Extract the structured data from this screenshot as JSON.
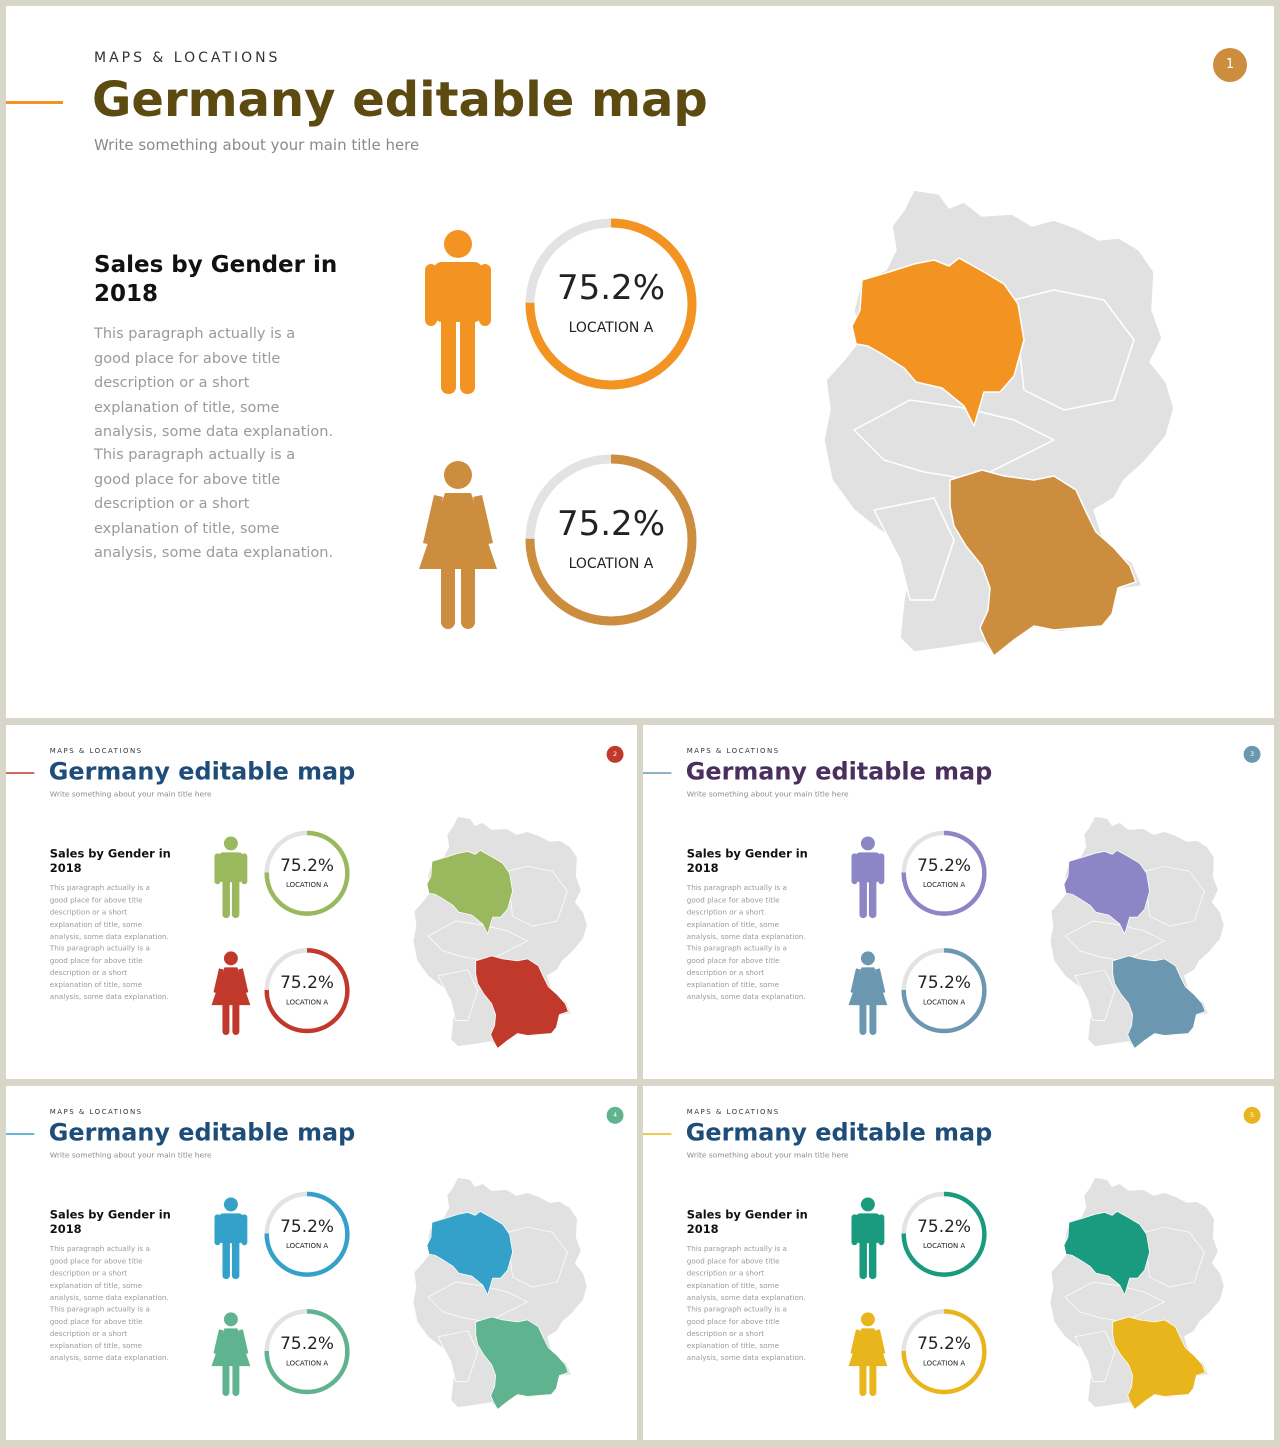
{
  "slides": [
    {
      "number": "1",
      "kicker": "MAPS & LOCATIONS",
      "title": "Germany editable map",
      "subtitle": "Write something about your main title here",
      "section_heading": "Sales by Gender in 2018",
      "paragraph_1": "This paragraph actually is a good place for above title description or a short explanation of title, some analysis, some data explanation.",
      "paragraph_2": "This paragraph actually is a good place for above title description or a short explanation of title, some analysis, some data explanation.",
      "male": {
        "value": "75.2%",
        "label": "LOCATION A",
        "fraction": 0.752
      },
      "female": {
        "value": "75.2%",
        "label": "LOCATION A",
        "fraction": 0.752
      },
      "colors": {
        "title": "#5c4a10",
        "male": "#f39422",
        "female": "#cc8d3f",
        "badge": "#cc8d3f",
        "accent": "#f39422"
      }
    },
    {
      "number": "2",
      "kicker": "MAPS & LOCATIONS",
      "title": "Germany editable map",
      "subtitle": "Write something about your main title here",
      "section_heading": "Sales by Gender in 2018",
      "paragraph_1": "This paragraph actually is a good place for above title description or a short explanation of title, some analysis, some data explanation.",
      "paragraph_2": "This paragraph actually is a good place for above title description or a short explanation of title, some analysis, some data explanation.",
      "male": {
        "value": "75.2%",
        "label": "LOCATION A",
        "fraction": 0.752
      },
      "female": {
        "value": "75.2%",
        "label": "LOCATION A",
        "fraction": 0.752
      },
      "colors": {
        "title": "#1f4d7a",
        "male": "#9ab85e",
        "female": "#c0392b",
        "badge": "#c0392b",
        "accent": "#c0392b"
      }
    },
    {
      "number": "3",
      "kicker": "MAPS & LOCATIONS",
      "title": "Germany editable map",
      "subtitle": "Write something about your main title here",
      "section_heading": "Sales by Gender in 2018",
      "paragraph_1": "This paragraph actually is a good place for above title description or a short explanation of title, some analysis, some data explanation.",
      "paragraph_2": "This paragraph actually is a good place for above title description or a short explanation of title, some analysis, some data explanation.",
      "male": {
        "value": "75.2%",
        "label": "LOCATION A",
        "fraction": 0.752
      },
      "female": {
        "value": "75.2%",
        "label": "LOCATION A",
        "fraction": 0.752
      },
      "colors": {
        "title": "#4a2e5e",
        "male": "#8c85c6",
        "female": "#6b98b0",
        "badge": "#6b98b0",
        "accent": "#6b98b0"
      }
    },
    {
      "number": "4",
      "kicker": "MAPS & LOCATIONS",
      "title": "Germany editable map",
      "subtitle": "Write something about your main title here",
      "section_heading": "Sales by Gender in 2018",
      "paragraph_1": "This paragraph actually is a good place for above title description or a short explanation of title, some analysis, some data explanation.",
      "paragraph_2": "This paragraph actually is a good place for above title description or a short explanation of title, some analysis, some data explanation.",
      "male": {
        "value": "75.2%",
        "label": "LOCATION A",
        "fraction": 0.752
      },
      "female": {
        "value": "75.2%",
        "label": "LOCATION A",
        "fraction": 0.752
      },
      "colors": {
        "title": "#1f4d7a",
        "male": "#33a1c9",
        "female": "#5fb38f",
        "badge": "#5fb38f",
        "accent": "#33a1c9"
      }
    },
    {
      "number": "5",
      "kicker": "MAPS & LOCATIONS",
      "title": "Germany editable map",
      "subtitle": "Write something about your main title here",
      "section_heading": "Sales by Gender in 2018",
      "paragraph_1": "This paragraph actually is a good place for above title description or a short explanation of title, some analysis, some data explanation.",
      "paragraph_2": "This paragraph actually is a good place for above title description or a short explanation of title, some analysis, some data explanation.",
      "male": {
        "value": "75.2%",
        "label": "LOCATION A",
        "fraction": 0.752
      },
      "female": {
        "value": "75.2%",
        "label": "LOCATION A",
        "fraction": 0.752
      },
      "colors": {
        "title": "#1f4d7a",
        "male": "#1a9a7e",
        "female": "#e9b51c",
        "badge": "#e9b51c",
        "accent": "#e9b51c"
      }
    }
  ]
}
